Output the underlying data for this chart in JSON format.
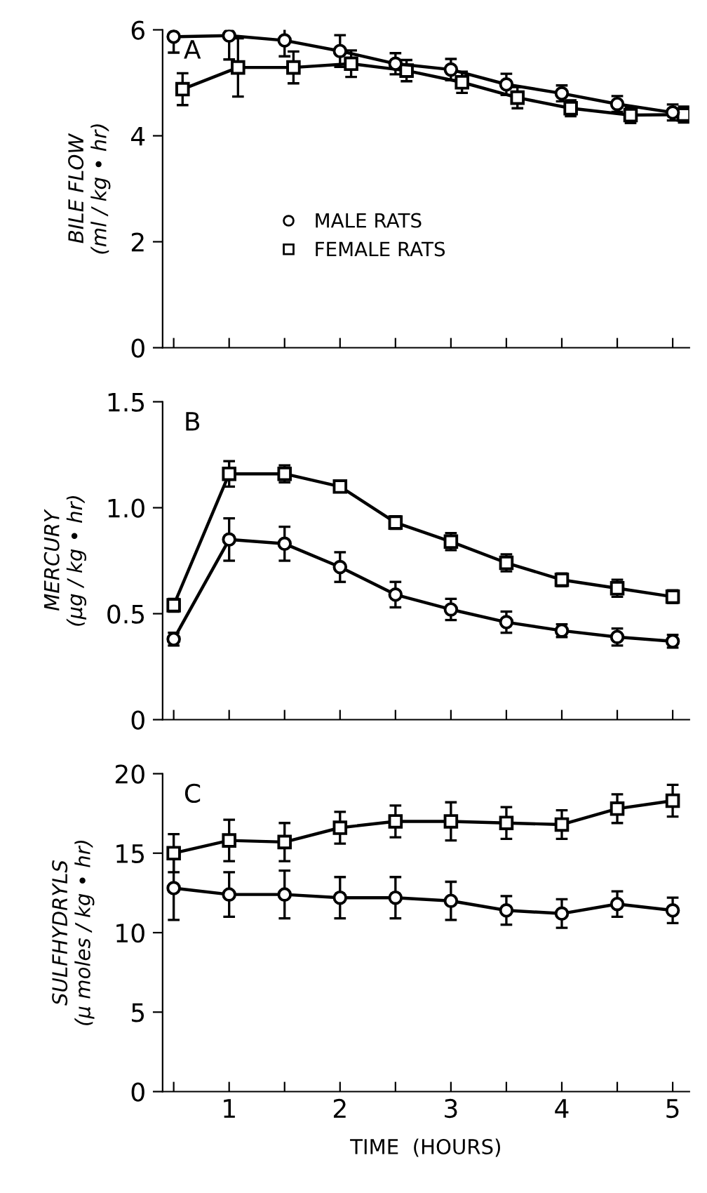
{
  "chart_data": [
    {
      "type": "line",
      "ylabel": "BILE FLOW\n(ml / kg • hr)",
      "annotations": [
        "A"
      ],
      "xlim": [
        0.4,
        5.15
      ],
      "ylim": [
        0,
        6
      ],
      "yticks": [
        0,
        2,
        4,
        6
      ],
      "xticks": [
        {
          "value": 0.5,
          "label": null
        },
        {
          "value": 1,
          "label": null
        },
        {
          "value": 1.5,
          "label": null
        },
        {
          "value": 2,
          "label": null
        },
        {
          "value": 2.5,
          "label": null
        },
        {
          "value": 3,
          "label": null
        },
        {
          "value": 3.5,
          "label": null
        },
        {
          "value": 4,
          "label": null
        },
        {
          "value": 4.5,
          "label": null
        },
        {
          "value": 5,
          "label": null
        }
      ],
      "tick_labels": "y",
      "legend": "center",
      "grid": false,
      "line_style": "solid",
      "series": [
        {
          "name": "MALE RATS",
          "color": "#000000",
          "marker": "circle",
          "x": [
            0.5,
            1,
            1.5,
            2,
            2.5,
            3,
            3.5,
            4,
            4.5,
            5
          ],
          "values": [
            5.87,
            5.89,
            5.8,
            5.6,
            5.36,
            5.25,
            4.97,
            4.8,
            4.6,
            4.44
          ],
          "errors": [
            0.3,
            0.45,
            0.3,
            0.3,
            0.2,
            0.2,
            0.2,
            0.15,
            0.15,
            0.15
          ]
        },
        {
          "name": "FEMALE RATS",
          "color": "#000000",
          "marker": "square",
          "x": [
            0.58,
            1.08,
            1.58,
            2.1,
            2.6,
            3.1,
            3.6,
            4.08,
            4.62,
            5.1
          ],
          "values": [
            4.88,
            5.29,
            5.29,
            5.36,
            5.23,
            5.01,
            4.72,
            4.52,
            4.39,
            4.4
          ],
          "errors": [
            0.3,
            0.55,
            0.3,
            0.25,
            0.2,
            0.2,
            0.2,
            0.15,
            0.15,
            0.15
          ]
        }
      ]
    },
    {
      "type": "line",
      "ylabel": "MERCURY\n(µg / kg • hr)",
      "annotations": [
        "B"
      ],
      "xlim": [
        0.4,
        5.15
      ],
      "ylim": [
        0,
        1.5
      ],
      "yticks": [
        0,
        0.5,
        {
          "value": 1,
          "label": "1.0"
        },
        1.5
      ],
      "xticks": [
        {
          "value": 0.5,
          "label": null
        },
        {
          "value": 1,
          "label": null
        },
        {
          "value": 1.5,
          "label": null
        },
        {
          "value": 2,
          "label": null
        },
        {
          "value": 2.5,
          "label": null
        },
        {
          "value": 3,
          "label": null
        },
        {
          "value": 3.5,
          "label": null
        },
        {
          "value": 4,
          "label": null
        },
        {
          "value": 4.5,
          "label": null
        },
        {
          "value": 5,
          "label": null
        }
      ],
      "tick_labels": "y",
      "grid": false,
      "line_style": "solid",
      "series": [
        {
          "color": "#000000",
          "marker": "circle",
          "x": [
            0.5,
            1,
            1.5,
            2,
            2.5,
            3,
            3.5,
            4,
            4.5,
            5
          ],
          "values": [
            0.38,
            0.85,
            0.83,
            0.72,
            0.59,
            0.52,
            0.46,
            0.42,
            0.39,
            0.37
          ],
          "errors": [
            0.03,
            0.1,
            0.08,
            0.07,
            0.06,
            0.05,
            0.05,
            0.03,
            0.04,
            0.03
          ]
        },
        {
          "color": "#000000",
          "marker": "square",
          "x": [
            0.5,
            1,
            1.5,
            2,
            2.5,
            3,
            3.5,
            4,
            4.5,
            5
          ],
          "values": [
            0.54,
            1.16,
            1.16,
            1.1,
            0.93,
            0.84,
            0.74,
            0.66,
            0.62,
            0.58
          ],
          "errors": [
            0.03,
            0.06,
            0.04,
            0.02,
            0.03,
            0.04,
            0.04,
            0.03,
            0.04,
            0.03
          ]
        }
      ]
    },
    {
      "type": "line",
      "ylabel": "SULFHYDRYLS\n(µ moles / kg • hr)",
      "xlabel": "TIME  (HOURS)",
      "annotations": [
        "C"
      ],
      "xlim": [
        0.4,
        5.15
      ],
      "ylim": [
        0,
        20
      ],
      "yticks": [
        0,
        5,
        10,
        15,
        20
      ],
      "xticks": [
        {
          "value": 0.5,
          "label": null
        },
        1,
        {
          "value": 1.5,
          "label": null
        },
        2,
        {
          "value": 2.5,
          "label": null
        },
        3,
        {
          "value": 3.5,
          "label": null
        },
        4,
        {
          "value": 4.5,
          "label": null
        },
        5
      ],
      "grid": false,
      "line_style": "solid",
      "series": [
        {
          "color": "#000000",
          "marker": "circle",
          "x": [
            0.5,
            1,
            1.5,
            2,
            2.5,
            3,
            3.5,
            4,
            4.5,
            5
          ],
          "values": [
            12.8,
            12.4,
            12.4,
            12.2,
            12.2,
            12.0,
            11.4,
            11.2,
            11.8,
            11.4
          ],
          "errors": [
            2.0,
            1.4,
            1.5,
            1.3,
            1.3,
            1.2,
            0.9,
            0.9,
            0.8,
            0.8
          ]
        },
        {
          "color": "#000000",
          "marker": "square",
          "x": [
            0.5,
            1,
            1.5,
            2,
            2.5,
            3,
            3.5,
            4,
            4.5,
            5
          ],
          "values": [
            15.0,
            15.8,
            15.7,
            16.6,
            17.0,
            17.0,
            16.9,
            16.8,
            17.8,
            18.3
          ],
          "errors": [
            1.2,
            1.3,
            1.2,
            1.0,
            1.0,
            1.2,
            1.0,
            0.9,
            0.9,
            1.0
          ]
        }
      ]
    }
  ]
}
